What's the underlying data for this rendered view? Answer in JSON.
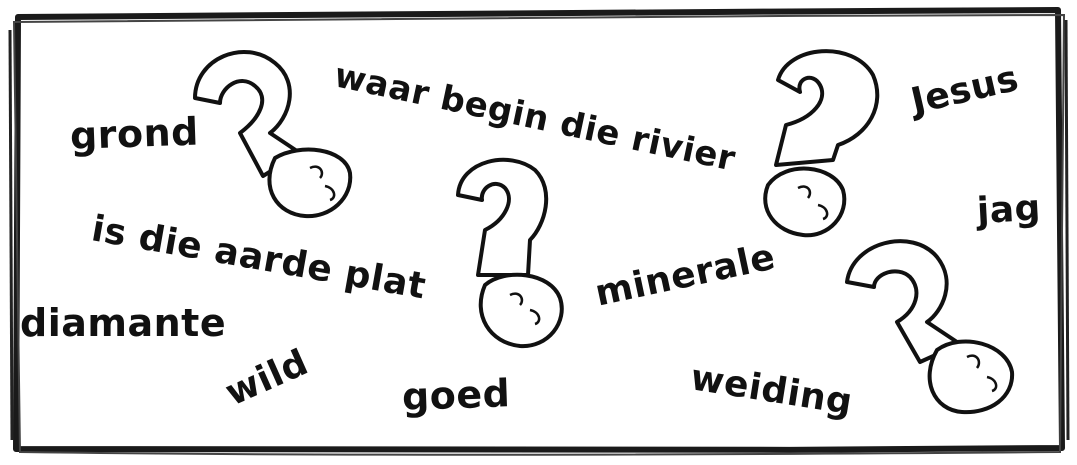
{
  "words": [
    {
      "text": "waar begin die rivier"
    },
    {
      "text": "Jesus"
    },
    {
      "text": "grond"
    },
    {
      "text": "jag"
    },
    {
      "text": "is die aarde plat"
    },
    {
      "text": "minerale"
    },
    {
      "text": "diamante"
    },
    {
      "text": "wild"
    },
    {
      "text": "goed"
    },
    {
      "text": "weiding"
    }
  ],
  "colors": {
    "ink": "#111111",
    "background": "#ffffff"
  },
  "icons": [
    "question-face-icon",
    "question-face-icon",
    "question-face-icon",
    "question-face-icon"
  ]
}
